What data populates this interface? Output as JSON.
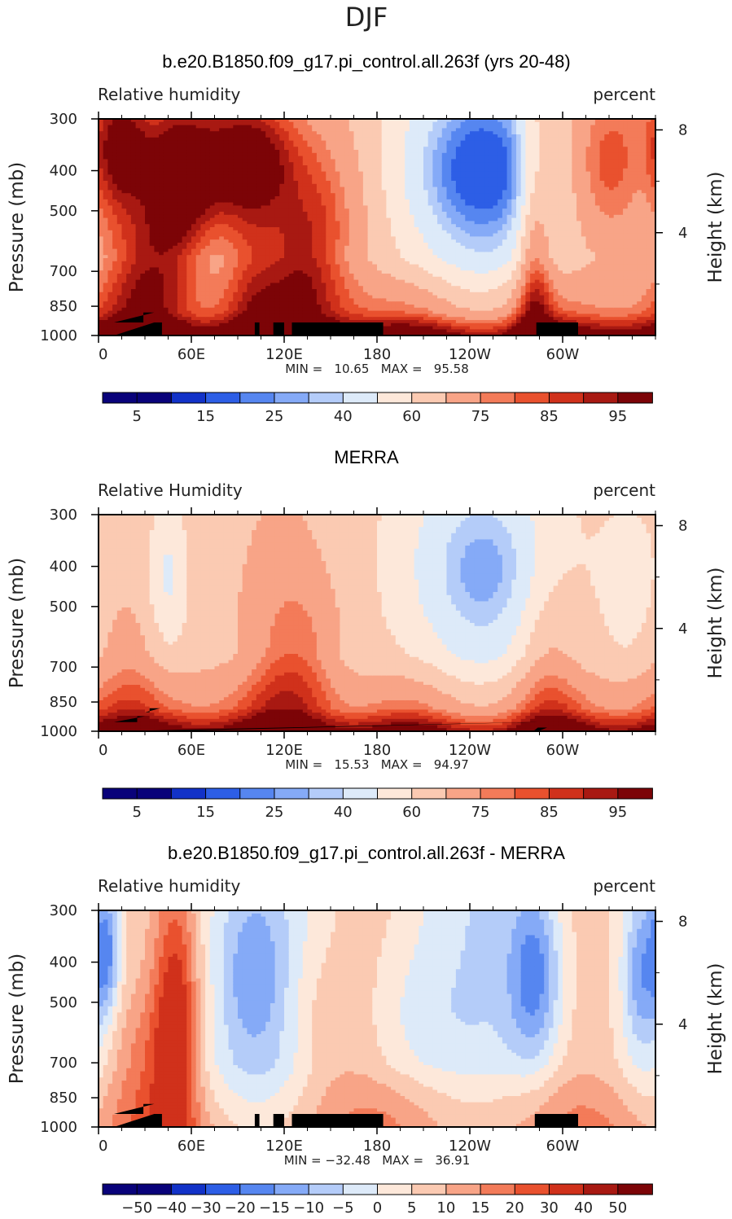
{
  "page": {
    "title": "DJF"
  },
  "chart_data": [
    {
      "type": "heatmap",
      "title": "b.e20.B1850.f09_g17.pi_control.all.263f (yrs 20-48)",
      "left_label": "Relative humidity",
      "right_label": "percent",
      "ylabel": "Pressure (mb)",
      "y2label": "Height (km)",
      "x_ticks": [
        "0",
        "60E",
        "120E",
        "180",
        "120W",
        "60W"
      ],
      "y_ticks": [
        "300",
        "400",
        "500",
        "700",
        "850",
        "1000"
      ],
      "y2_ticks": [
        "8",
        "4"
      ],
      "stats_text": "MIN =   10.65   MAX =   95.58",
      "min": 10.65,
      "max": 95.58,
      "colorbar_labels": [
        "5",
        "15",
        "25",
        "40",
        "60",
        "75",
        "85",
        "95"
      ],
      "terrain": [
        [
          10,
          930
        ],
        [
          29,
          930
        ],
        [
          29,
          880
        ],
        [
          36,
          880
        ],
        [
          36,
          930
        ],
        [
          41,
          930
        ],
        [
          41,
          1000
        ],
        [
          10,
          1000
        ],
        [
          101,
          930
        ],
        [
          104,
          930
        ],
        [
          104,
          1000
        ],
        [
          101,
          1000
        ],
        [
          113,
          930
        ],
        [
          120,
          930
        ],
        [
          120,
          1000
        ],
        [
          113,
          1000
        ],
        [
          125,
          930
        ],
        [
          184,
          930
        ],
        [
          184,
          1000
        ],
        [
          125,
          1000
        ],
        [
          283,
          930
        ],
        [
          310,
          930
        ],
        [
          310,
          1000
        ],
        [
          283,
          1000
        ]
      ],
      "features": [
        {
          "lon": 15,
          "p": 350,
          "v": 32,
          "w": 14,
          "h": 0.25
        },
        {
          "lon": 52,
          "p": 420,
          "v": 38,
          "w": 16,
          "h": 0.35
        },
        {
          "lon": 95,
          "p": 380,
          "v": 42,
          "w": 22,
          "h": 0.25
        },
        {
          "lon": 240,
          "p": 420,
          "v": 10,
          "w": 55,
          "h": 0.5
        },
        {
          "lon": 250,
          "p": 400,
          "v": -25,
          "w": 28,
          "h": 0.3
        },
        {
          "lon": 330,
          "p": 380,
          "v": 25,
          "w": 26,
          "h": 0.35
        },
        {
          "lon": 352,
          "p": 400,
          "v": -8,
          "w": 10,
          "h": 0.3
        },
        {
          "lon": 145,
          "p": 560,
          "v": 20,
          "w": 22,
          "h": 0.45
        },
        {
          "lon": 30,
          "p": 700,
          "v": 20,
          "w": 18,
          "h": 0.3
        },
        {
          "lon": 282,
          "p": 750,
          "v": 25,
          "w": 8,
          "h": 0.8
        },
        {
          "lon": 100,
          "p": 760,
          "v": 15,
          "w": 14,
          "h": 0.3
        },
        {
          "lon": 130,
          "p": 720,
          "v": 12,
          "w": 14,
          "h": 0.3
        }
      ]
    },
    {
      "type": "heatmap",
      "title": "MERRA",
      "left_label": "Relative Humidity",
      "right_label": "percent",
      "ylabel": "Pressure (mb)",
      "y2label": "Height (km)",
      "x_ticks": [
        "0",
        "60E",
        "120E",
        "180",
        "120W",
        "60W"
      ],
      "y_ticks": [
        "300",
        "400",
        "500",
        "700",
        "850",
        "1000"
      ],
      "y2_ticks": [
        "8",
        "4"
      ],
      "stats_text": "MIN =   15.53   MAX =   94.97",
      "min": 15.53,
      "max": 94.97,
      "colorbar_labels": [
        "5",
        "15",
        "25",
        "40",
        "60",
        "75",
        "85",
        "95"
      ],
      "terrain": [
        [
          10,
          950
        ],
        [
          25,
          950
        ],
        [
          25,
          920
        ],
        [
          30,
          920
        ],
        [
          30,
          900
        ],
        [
          33,
          900
        ],
        [
          33,
          880
        ],
        [
          40,
          880
        ],
        [
          40,
          1000
        ],
        [
          10,
          1000
        ],
        [
          281,
          950
        ],
        [
          284,
          950
        ],
        [
          284,
          1000
        ],
        [
          281,
          1000
        ],
        [
          284,
          980
        ],
        [
          290,
          980
        ],
        [
          290,
          1000
        ],
        [
          284,
          1000
        ]
      ],
      "features": [
        {
          "lon": 45,
          "p": 420,
          "v": -20,
          "w": 10,
          "h": 0.3
        },
        {
          "lon": 240,
          "p": 420,
          "v": 12,
          "w": 55,
          "h": 0.5
        },
        {
          "lon": 250,
          "p": 420,
          "v": -12,
          "w": 25,
          "h": 0.3
        },
        {
          "lon": 345,
          "p": 420,
          "v": -12,
          "w": 14,
          "h": 0.3
        },
        {
          "lon": 120,
          "p": 640,
          "v": 12,
          "w": 16,
          "h": 0.45
        },
        {
          "lon": 140,
          "p": 650,
          "v": 8,
          "w": 14,
          "h": 0.3
        },
        {
          "lon": 290,
          "p": 660,
          "v": 12,
          "w": 14,
          "h": 0.45
        },
        {
          "lon": 20,
          "p": 700,
          "v": 5,
          "w": 15,
          "h": 0.3
        }
      ]
    },
    {
      "type": "heatmap",
      "title": "b.e20.B1850.f09_g17.pi_control.all.263f - MERRA",
      "left_label": "Relative humidity",
      "right_label": "percent",
      "ylabel": "Pressure (mb)",
      "y2label": "Height (km)",
      "x_ticks": [
        "0",
        "60E",
        "120E",
        "180",
        "120W",
        "60W"
      ],
      "y_ticks": [
        "300",
        "400",
        "500",
        "700",
        "850",
        "1000"
      ],
      "y2_ticks": [
        "8",
        "4"
      ],
      "stats_text": "MIN = −32.48   MAX =   36.91",
      "min": -32.48,
      "max": 36.91,
      "colorbar_labels": [
        "−50",
        "−40",
        "−30",
        "−20",
        "−15",
        "−10",
        "−5",
        "0",
        "5",
        "10",
        "15",
        "20",
        "30",
        "40",
        "50"
      ],
      "terrain": [
        [
          10,
          930
        ],
        [
          29,
          930
        ],
        [
          29,
          880
        ],
        [
          36,
          880
        ],
        [
          36,
          930
        ],
        [
          41,
          930
        ],
        [
          41,
          1000
        ],
        [
          10,
          1000
        ],
        [
          101,
          930
        ],
        [
          104,
          930
        ],
        [
          104,
          1000
        ],
        [
          101,
          1000
        ],
        [
          113,
          930
        ],
        [
          120,
          930
        ],
        [
          120,
          1000
        ],
        [
          113,
          1000
        ],
        [
          125,
          930
        ],
        [
          184,
          930
        ],
        [
          184,
          1000
        ],
        [
          125,
          1000
        ],
        [
          282,
          930
        ],
        [
          310,
          930
        ],
        [
          310,
          1000
        ],
        [
          282,
          1000
        ]
      ],
      "features": [
        {
          "lon": 5,
          "p": 380,
          "v": -20,
          "w": 6,
          "h": 0.25
        },
        {
          "lon": 50,
          "p": 560,
          "v": 24,
          "w": 10,
          "h": 0.55
        },
        {
          "lon": 30,
          "p": 720,
          "v": 10,
          "w": 18,
          "h": 0.3
        },
        {
          "lon": 100,
          "p": 430,
          "v": -10,
          "w": 14,
          "h": 0.3
        },
        {
          "lon": 282,
          "p": 430,
          "v": -20,
          "w": 12,
          "h": 0.35
        },
        {
          "lon": 350,
          "p": 430,
          "v": -15,
          "w": 8,
          "h": 0.3
        },
        {
          "lon": 145,
          "p": 560,
          "v": 5,
          "w": 16,
          "h": 0.3
        },
        {
          "lon": 200,
          "p": 560,
          "v": -5,
          "w": 20,
          "h": 0.35
        },
        {
          "lon": 240,
          "p": 860,
          "v": 5,
          "w": 60,
          "h": 0.2
        }
      ]
    }
  ]
}
